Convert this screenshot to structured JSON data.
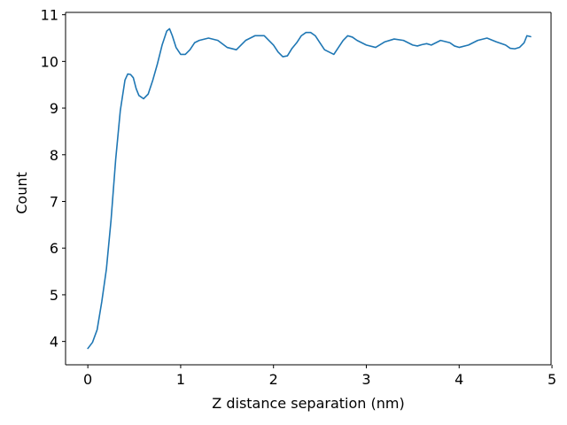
{
  "chart_data": {
    "type": "line",
    "title": "",
    "xlabel": "Z distance separation (nm)",
    "ylabel": "Count",
    "xlim": [
      -0.24,
      4.99
    ],
    "ylim": [
      3.5,
      11.05
    ],
    "xticks": [
      0,
      1,
      2,
      3,
      4,
      5
    ],
    "xtick_labels": [
      "0",
      "1",
      "2",
      "3",
      "4",
      "5"
    ],
    "yticks": [
      4,
      5,
      6,
      7,
      8,
      9,
      10,
      11
    ],
    "ytick_labels": [
      "4",
      "5",
      "6",
      "7",
      "8",
      "9",
      "10",
      "11"
    ],
    "grid": false,
    "legend": "none",
    "series": [
      {
        "color": "#1f77b4",
        "x": [
          0.0,
          0.05,
          0.1,
          0.15,
          0.2,
          0.25,
          0.3,
          0.35,
          0.4,
          0.43,
          0.46,
          0.49,
          0.52,
          0.55,
          0.6,
          0.65,
          0.7,
          0.75,
          0.8,
          0.85,
          0.88,
          0.91,
          0.95,
          1.0,
          1.05,
          1.1,
          1.15,
          1.2,
          1.3,
          1.4,
          1.5,
          1.6,
          1.7,
          1.8,
          1.9,
          2.0,
          2.05,
          2.1,
          2.15,
          2.2,
          2.25,
          2.3,
          2.35,
          2.4,
          2.45,
          2.5,
          2.55,
          2.6,
          2.65,
          2.7,
          2.75,
          2.8,
          2.85,
          2.9,
          3.0,
          3.1,
          3.2,
          3.3,
          3.4,
          3.5,
          3.55,
          3.6,
          3.65,
          3.7,
          3.8,
          3.9,
          3.95,
          4.0,
          4.1,
          4.2,
          4.3,
          4.4,
          4.5,
          4.55,
          4.6,
          4.65,
          4.7,
          4.73,
          4.77
        ],
        "values": [
          3.85,
          3.98,
          4.25,
          4.85,
          5.55,
          6.6,
          7.9,
          8.95,
          9.6,
          9.73,
          9.72,
          9.65,
          9.42,
          9.27,
          9.2,
          9.3,
          9.6,
          9.95,
          10.35,
          10.65,
          10.7,
          10.55,
          10.3,
          10.15,
          10.15,
          10.25,
          10.4,
          10.45,
          10.5,
          10.45,
          10.3,
          10.25,
          10.45,
          10.55,
          10.55,
          10.35,
          10.2,
          10.1,
          10.12,
          10.28,
          10.4,
          10.55,
          10.62,
          10.62,
          10.55,
          10.4,
          10.25,
          10.2,
          10.15,
          10.3,
          10.45,
          10.55,
          10.52,
          10.45,
          10.35,
          10.3,
          10.42,
          10.48,
          10.45,
          10.35,
          10.33,
          10.36,
          10.38,
          10.35,
          10.45,
          10.4,
          10.33,
          10.3,
          10.35,
          10.45,
          10.5,
          10.42,
          10.35,
          10.28,
          10.27,
          10.3,
          10.4,
          10.55,
          10.53
        ]
      }
    ]
  }
}
